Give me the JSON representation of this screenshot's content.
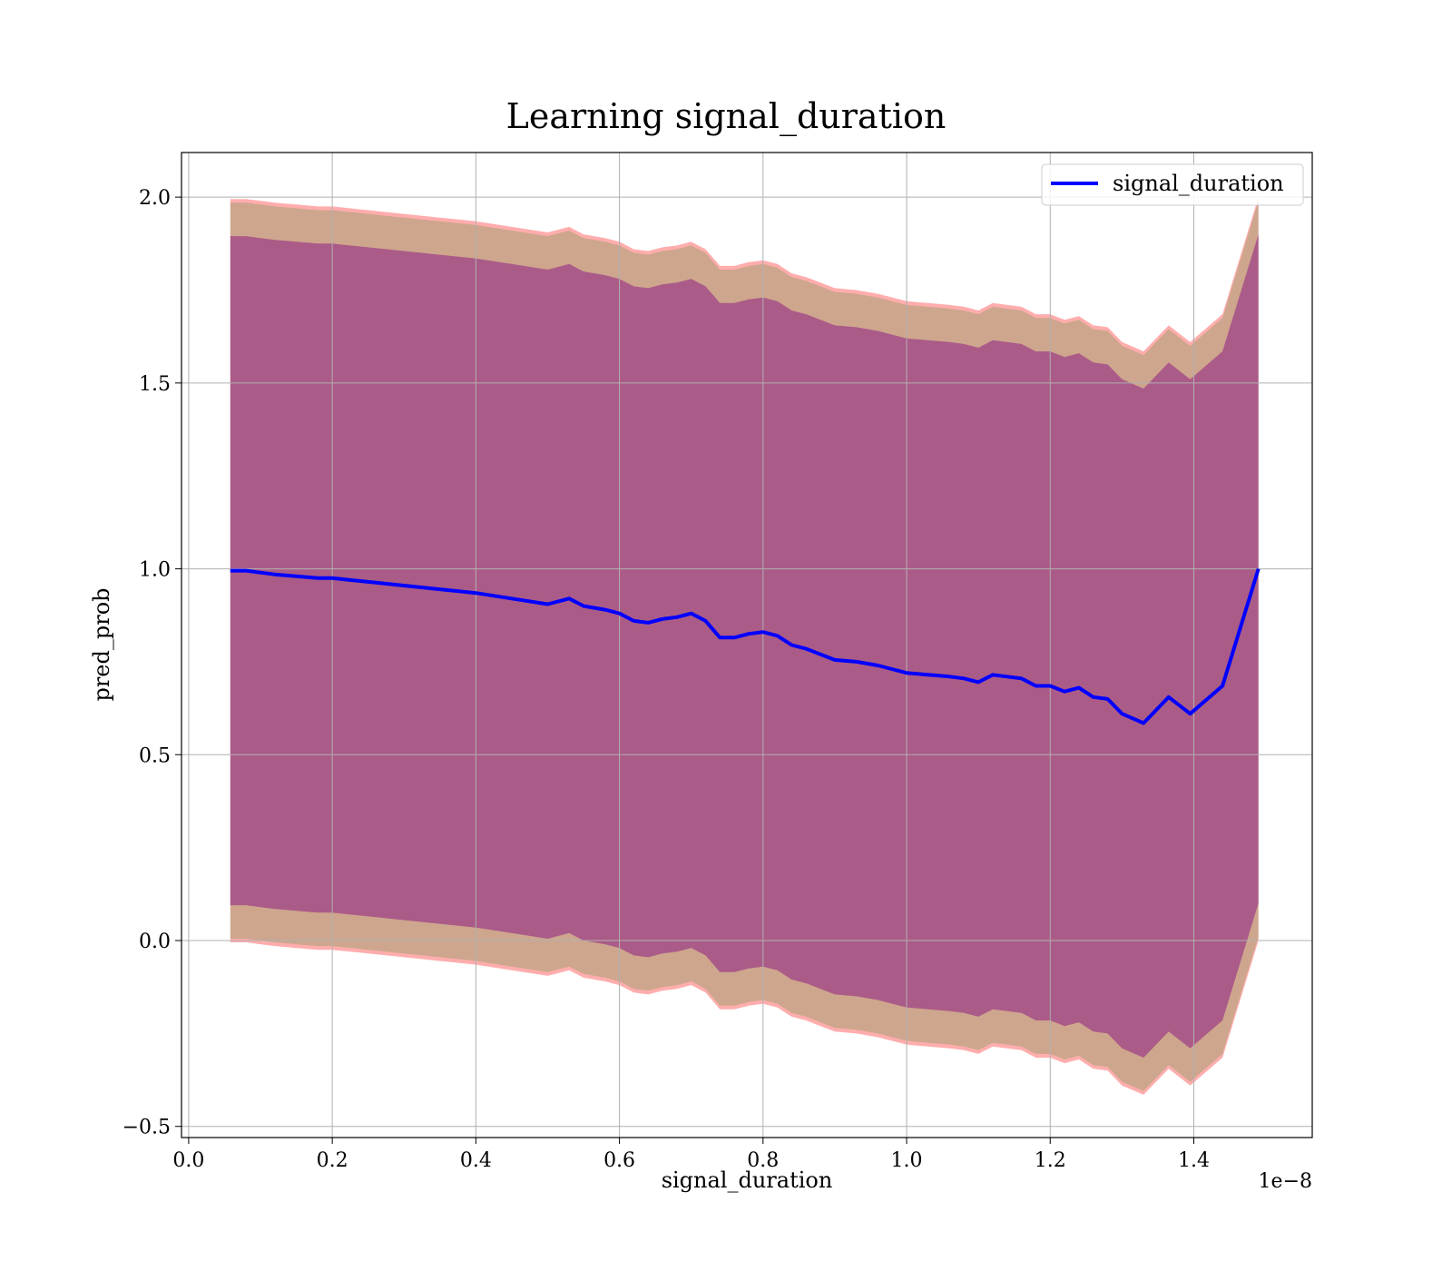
{
  "chart_data": {
    "type": "line",
    "title": "Learning signal_duration",
    "xlabel": "signal_duration",
    "ylabel": "pred_prob",
    "x_offset_label": "1e−8",
    "xlim": [
      -0.01,
      1.565
    ],
    "ylim": [
      -0.53,
      2.12
    ],
    "x_ticks": [
      0.0,
      0.2,
      0.4,
      0.6,
      0.8,
      1.0,
      1.2,
      1.4
    ],
    "x_tick_labels": [
      "0.0",
      "0.2",
      "0.4",
      "0.6",
      "0.8",
      "1.0",
      "1.2",
      "1.4"
    ],
    "y_ticks": [
      -0.5,
      0.0,
      0.5,
      1.0,
      1.5,
      2.0
    ],
    "y_tick_labels": [
      "−0.5",
      "0.0",
      "0.5",
      "1.0",
      "1.5",
      "2.0"
    ],
    "grid": true,
    "legend_position": "top-right",
    "series": [
      {
        "name": "signal_duration",
        "color": "#0000ff",
        "x": [
          0.058,
          0.08,
          0.1,
          0.12,
          0.15,
          0.18,
          0.2,
          0.25,
          0.3,
          0.35,
          0.4,
          0.45,
          0.5,
          0.53,
          0.55,
          0.58,
          0.6,
          0.62,
          0.64,
          0.66,
          0.68,
          0.7,
          0.72,
          0.74,
          0.76,
          0.78,
          0.8,
          0.82,
          0.84,
          0.86,
          0.88,
          0.9,
          0.93,
          0.96,
          1.0,
          1.03,
          1.06,
          1.08,
          1.1,
          1.12,
          1.14,
          1.16,
          1.18,
          1.2,
          1.22,
          1.24,
          1.26,
          1.28,
          1.3,
          1.33,
          1.365,
          1.395,
          1.44,
          1.49
        ],
        "values": [
          0.995,
          0.995,
          0.99,
          0.985,
          0.98,
          0.975,
          0.975,
          0.965,
          0.955,
          0.945,
          0.935,
          0.92,
          0.905,
          0.92,
          0.9,
          0.89,
          0.88,
          0.86,
          0.855,
          0.865,
          0.87,
          0.88,
          0.86,
          0.815,
          0.815,
          0.825,
          0.83,
          0.82,
          0.795,
          0.785,
          0.77,
          0.755,
          0.75,
          0.74,
          0.72,
          0.715,
          0.71,
          0.705,
          0.695,
          0.715,
          0.71,
          0.705,
          0.685,
          0.685,
          0.67,
          0.68,
          0.655,
          0.65,
          0.61,
          0.585,
          0.655,
          0.61,
          0.685,
          1.0
        ]
      }
    ],
    "bands": [
      {
        "color": "#ff0000",
        "opacity": 0.32,
        "half_width": 1.0
      },
      {
        "color": "#228b22",
        "opacity": 0.22,
        "half_width": 0.99
      },
      {
        "color": "#800080",
        "opacity": 0.45,
        "half_width": 0.9
      }
    ]
  }
}
